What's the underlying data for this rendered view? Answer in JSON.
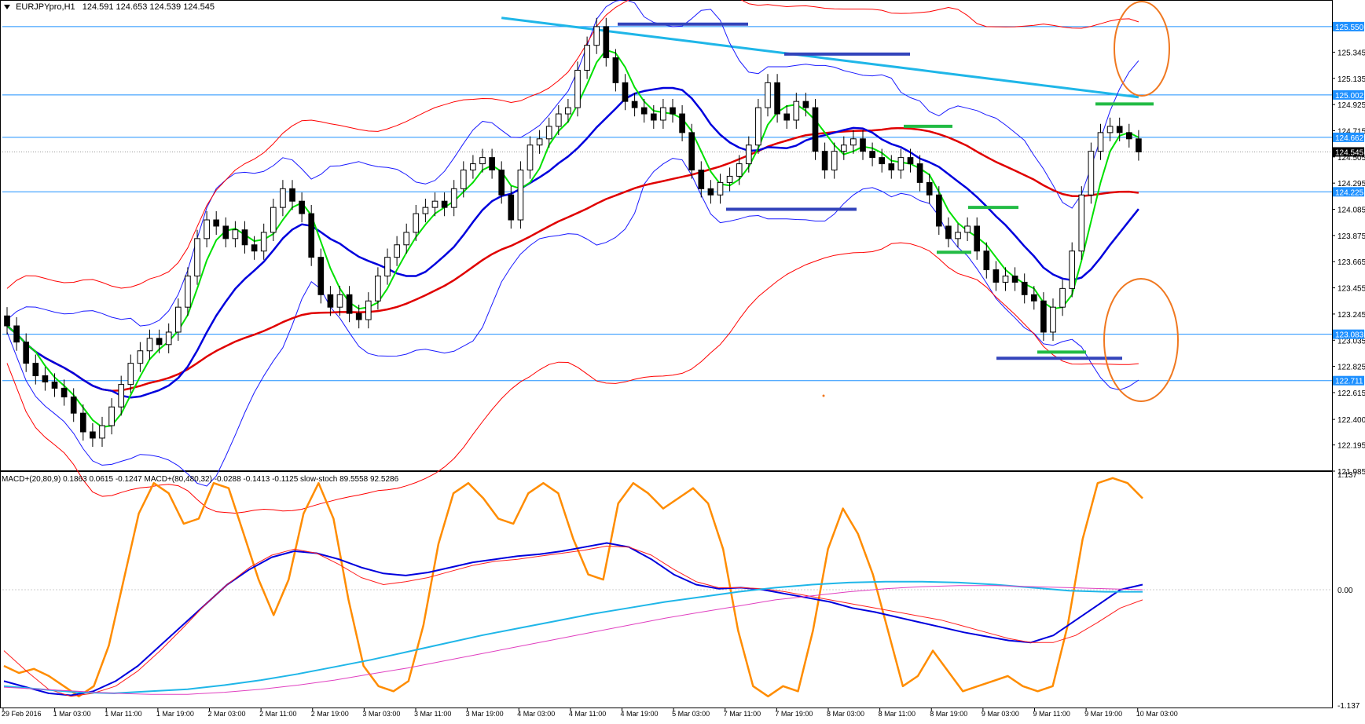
{
  "header": {
    "symbol_timeframe": "EURJPYpro,H1",
    "ohlc": "124.591 124.653 124.539 124.545"
  },
  "subheader": {
    "indicators": "MACD+(20,80,9) 0.1863 0.0615 -0.1247   MACD+(80,480,32) -0.0288 -0.1413 -0.1125   slow-stoch 89.5558 92.5286"
  },
  "colors": {
    "background": "#ffffff",
    "grid_border": "#000000",
    "candle_body": "#000000",
    "bb_outer": "#ff0000",
    "bb_inner": "#1a1aff",
    "ma_fast": "#00e000",
    "ma_mid": "#0000dd",
    "ma_slow": "#e00000",
    "ma_long": "#1fb6e8",
    "level_line": "#1e90ff",
    "level_label_bg": "#1e90ff",
    "current_price_bg": "#000000",
    "annotation_blue": "#3344bb",
    "annotation_green": "#22bb44",
    "annotation_orange": "#f07820",
    "stoch": "#ff8c00",
    "macd_fast": "#0000dd",
    "macd_fast_signal": "#ff2020",
    "macd_slow": "#1fb6e8",
    "macd_slow_signal": "#e040c0"
  },
  "chart_data": [
    {
      "type": "candlestick",
      "title": "EURJPYpro,H1",
      "ylim": [
        121.985,
        125.65
      ],
      "price_axis_labels": [
        "125.345",
        "125.135",
        "124.925",
        "124.715",
        "124.505",
        "124.295",
        "124.085",
        "123.875",
        "123.665",
        "123.455",
        "123.245",
        "123.035",
        "122.825",
        "122.615",
        "122.400",
        "122.195",
        "121.985"
      ],
      "horizontal_levels": [
        "125.550",
        "125.002",
        "124.662",
        "124.225",
        "123.083",
        "122.711"
      ],
      "current_price": "124.545",
      "time_labels": [
        "29 Feb 2016",
        "1 Mar 03:00",
        "1 Mar 11:00",
        "1 Mar 19:00",
        "2 Mar 03:00",
        "2 Mar 11:00",
        "2 Mar 19:00",
        "3 Mar 03:00",
        "3 Mar 11:00",
        "3 Mar 19:00",
        "4 Mar 03:00",
        "4 Mar 11:00",
        "4 Mar 19:00",
        "5 Mar 03:00",
        "7 Mar 11:00",
        "7 Mar 19:00",
        "8 Mar 03:00",
        "8 Mar 11:00",
        "8 Mar 19:00",
        "9 Mar 03:00",
        "9 Mar 11:00",
        "9 Mar 19:00",
        "10 Mar 03:00"
      ],
      "closes": [
        123.15,
        123.02,
        122.85,
        122.75,
        122.7,
        122.65,
        122.58,
        122.45,
        122.3,
        122.25,
        122.35,
        122.5,
        122.68,
        122.85,
        122.95,
        123.05,
        123.0,
        123.1,
        123.3,
        123.55,
        123.85,
        124.0,
        123.95,
        123.85,
        123.92,
        123.8,
        123.75,
        123.9,
        124.1,
        124.25,
        124.15,
        124.05,
        123.7,
        123.4,
        123.3,
        123.4,
        123.25,
        123.2,
        123.35,
        123.55,
        123.7,
        123.8,
        123.9,
        124.05,
        124.1,
        124.15,
        124.1,
        124.25,
        124.4,
        124.45,
        124.5,
        124.4,
        124.2,
        124.0,
        124.4,
        124.6,
        124.65,
        124.75,
        124.85,
        124.9,
        125.2,
        125.4,
        125.55,
        125.3,
        125.1,
        124.95,
        124.9,
        124.85,
        124.8,
        124.9,
        124.85,
        124.7,
        124.4,
        124.25,
        124.2,
        124.3,
        124.35,
        124.45,
        124.6,
        124.9,
        125.1,
        124.85,
        124.8,
        124.95,
        124.9,
        124.55,
        124.4,
        124.55,
        124.6,
        124.65,
        124.55,
        124.5,
        124.45,
        124.4,
        124.5,
        124.45,
        124.3,
        124.2,
        123.95,
        123.85,
        123.9,
        123.95,
        123.75,
        123.6,
        123.5,
        123.55,
        123.5,
        123.4,
        123.35,
        123.1,
        123.3,
        123.45,
        123.75,
        124.2,
        124.55,
        124.7,
        124.75,
        124.7,
        124.65,
        124.545
      ]
    },
    {
      "type": "line",
      "title": "MACD+(20,80,9) / MACD+(80,480,32) / slow-stoch",
      "ylim": [
        -1.137,
        1.137
      ],
      "y_axis_labels": [
        "1.137",
        "0.00",
        "-1.137"
      ],
      "series": [
        {
          "name": "slow-stoch",
          "values": [
            -0.75,
            -0.82,
            -0.78,
            -0.85,
            -0.95,
            -1.05,
            -0.95,
            -0.55,
            0.1,
            0.75,
            1.05,
            0.95,
            0.65,
            0.7,
            1.05,
            1.0,
            0.55,
            0.1,
            -0.25,
            0.1,
            0.75,
            1.05,
            0.7,
            -0.1,
            -0.75,
            -0.95,
            -1.0,
            -0.9,
            -0.35,
            0.45,
            0.95,
            1.05,
            0.9,
            0.7,
            0.65,
            0.95,
            1.05,
            0.95,
            0.5,
            0.15,
            0.1,
            0.85,
            1.05,
            0.95,
            0.8,
            0.9,
            1.0,
            0.85,
            0.4,
            -0.4,
            -0.95,
            -1.05,
            -0.95,
            -1.0,
            -0.4,
            0.4,
            0.8,
            0.55,
            0.15,
            -0.4,
            -0.95,
            -0.85,
            -0.6,
            -0.8,
            -1.0,
            -0.95,
            -0.9,
            -0.85,
            -0.95,
            -1.0,
            -0.95,
            -0.35,
            0.5,
            1.05,
            1.1,
            1.05,
            0.9
          ]
        },
        {
          "name": "MACD+(20,80,9) main",
          "values": [
            -0.9,
            -0.96,
            -1.02,
            -1.04,
            -1.0,
            -0.9,
            -0.75,
            -0.55,
            -0.35,
            -0.15,
            0.05,
            0.2,
            0.32,
            0.38,
            0.36,
            0.3,
            0.22,
            0.16,
            0.14,
            0.17,
            0.22,
            0.27,
            0.3,
            0.33,
            0.35,
            0.38,
            0.42,
            0.46,
            0.42,
            0.3,
            0.15,
            0.05,
            0.01,
            0.02,
            0.0,
            -0.04,
            -0.08,
            -0.12,
            -0.18,
            -0.22,
            -0.27,
            -0.32,
            -0.37,
            -0.42,
            -0.46,
            -0.5,
            -0.52,
            -0.45,
            -0.3,
            -0.15,
            0.0,
            0.05
          ]
        },
        {
          "name": "MACD+(20,80,9) signal",
          "values": [
            -0.6,
            -0.8,
            -0.98,
            -1.05,
            -1.02,
            -0.95,
            -0.8,
            -0.6,
            -0.38,
            -0.15,
            0.05,
            0.22,
            0.34,
            0.4,
            0.36,
            0.25,
            0.12,
            0.05,
            0.08,
            0.12,
            0.18,
            0.24,
            0.28,
            0.3,
            0.33,
            0.36,
            0.39,
            0.43,
            0.42,
            0.34,
            0.2,
            0.08,
            0.02,
            0.02,
            0.01,
            -0.02,
            -0.06,
            -0.1,
            -0.14,
            -0.18,
            -0.22,
            -0.26,
            -0.3,
            -0.36,
            -0.42,
            -0.48,
            -0.52,
            -0.52,
            -0.45,
            -0.32,
            -0.18,
            -0.1
          ]
        },
        {
          "name": "MACD+(80,480,32) main",
          "values": [
            -0.95,
            -0.98,
            -1.01,
            -1.02,
            -1.0,
            -0.98,
            -0.94,
            -0.89,
            -0.83,
            -0.76,
            -0.69,
            -0.61,
            -0.53,
            -0.45,
            -0.38,
            -0.31,
            -0.24,
            -0.18,
            -0.12,
            -0.07,
            -0.02,
            0.02,
            0.05,
            0.07,
            0.08,
            0.08,
            0.07,
            0.05,
            0.02,
            -0.01,
            -0.02,
            -0.02
          ]
        },
        {
          "name": "MACD+(80,480,32) signal",
          "values": [
            -0.96,
            -0.98,
            -1.0,
            -1.02,
            -1.03,
            -1.03,
            -1.01,
            -0.98,
            -0.94,
            -0.89,
            -0.83,
            -0.77,
            -0.7,
            -0.63,
            -0.56,
            -0.49,
            -0.42,
            -0.35,
            -0.28,
            -0.22,
            -0.16,
            -0.1,
            -0.06,
            -0.02,
            0.01,
            0.03,
            0.04,
            0.04,
            0.03,
            0.02,
            0.01,
            0.0
          ]
        }
      ]
    }
  ]
}
